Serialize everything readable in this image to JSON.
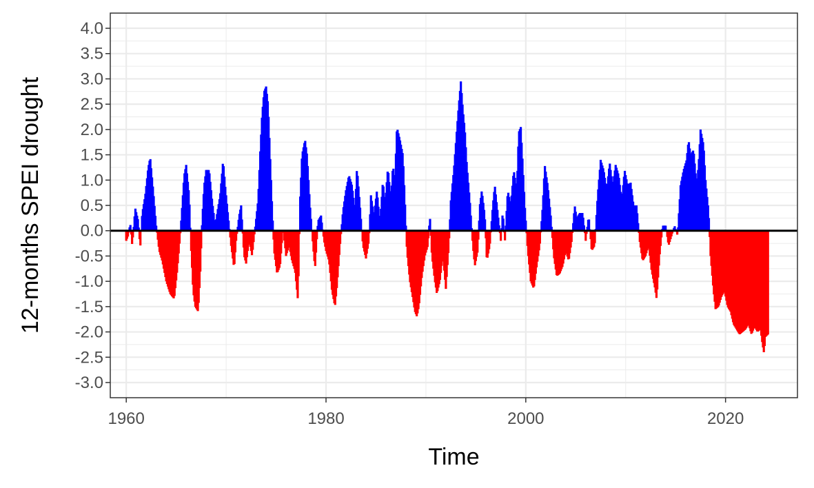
{
  "chart_data": {
    "type": "bar",
    "title": "",
    "xlabel": "Time",
    "ylabel": "12-months SPEI drought",
    "xlim": [
      1958.4,
      2027.2
    ],
    "ylim": [
      -3.3,
      4.3
    ],
    "x_ticks": [
      1960,
      1980,
      2000,
      2020
    ],
    "x_tick_labels": [
      "1960",
      "1980",
      "2000",
      "2020"
    ],
    "y_ticks": [
      -3.0,
      -2.5,
      -2.0,
      -1.5,
      -1.0,
      -0.5,
      0.0,
      0.5,
      1.0,
      1.5,
      2.0,
      2.5,
      3.0,
      3.5,
      4.0
    ],
    "y_tick_labels": [
      "-3.0",
      "-2.5",
      "-2.0",
      "-1.5",
      "-1.0",
      "-0.5",
      "0.0",
      "0.5",
      "1.0",
      "1.5",
      "2.0",
      "2.5",
      "3.0",
      "3.5",
      "4.0"
    ],
    "grid": true,
    "legend": "none",
    "colors": {
      "positive": "#0000ff",
      "negative": "#ff0000",
      "zero_line": "#000000",
      "grid": "#ebebeb",
      "panel_border": "#333333"
    },
    "series_anchors": [
      [
        1960.0,
        -0.2
      ],
      [
        1960.2,
        -0.1
      ],
      [
        1960.4,
        0.15
      ],
      [
        1960.6,
        -0.3
      ],
      [
        1960.9,
        0.45
      ],
      [
        1961.2,
        0.2
      ],
      [
        1961.4,
        -0.35
      ],
      [
        1961.6,
        0.35
      ],
      [
        1961.9,
        0.7
      ],
      [
        1962.2,
        1.25
      ],
      [
        1962.4,
        1.45
      ],
      [
        1962.7,
        0.8
      ],
      [
        1963.0,
        0.1
      ],
      [
        1963.3,
        -0.4
      ],
      [
        1963.6,
        -0.6
      ],
      [
        1964.0,
        -1.0
      ],
      [
        1964.4,
        -1.25
      ],
      [
        1964.8,
        -1.35
      ],
      [
        1965.1,
        -0.8
      ],
      [
        1965.4,
        -0.1
      ],
      [
        1965.6,
        0.5
      ],
      [
        1965.8,
        1.1
      ],
      [
        1966.0,
        1.3
      ],
      [
        1966.3,
        0.7
      ],
      [
        1966.5,
        -0.4
      ],
      [
        1966.7,
        -1.2
      ],
      [
        1966.9,
        -1.5
      ],
      [
        1967.2,
        -1.6
      ],
      [
        1967.4,
        -0.9
      ],
      [
        1967.6,
        0.2
      ],
      [
        1967.8,
        0.9
      ],
      [
        1968.0,
        1.2
      ],
      [
        1968.3,
        1.2
      ],
      [
        1968.6,
        0.6
      ],
      [
        1968.9,
        0.1
      ],
      [
        1969.1,
        0.35
      ],
      [
        1969.4,
        0.7
      ],
      [
        1969.7,
        1.4
      ],
      [
        1969.9,
        0.9
      ],
      [
        1970.2,
        0.3
      ],
      [
        1970.5,
        -0.3
      ],
      [
        1970.8,
        -0.75
      ],
      [
        1971.0,
        -0.2
      ],
      [
        1971.3,
        0.3
      ],
      [
        1971.5,
        0.5
      ],
      [
        1971.8,
        -0.5
      ],
      [
        1972.0,
        -0.65
      ],
      [
        1972.3,
        -0.2
      ],
      [
        1972.6,
        -0.5
      ],
      [
        1972.9,
        0.05
      ],
      [
        1973.2,
        0.6
      ],
      [
        1973.4,
        1.5
      ],
      [
        1973.6,
        2.3
      ],
      [
        1973.8,
        2.75
      ],
      [
        1974.0,
        2.85
      ],
      [
        1974.2,
        2.5
      ],
      [
        1974.4,
        1.5
      ],
      [
        1974.6,
        0.5
      ],
      [
        1974.8,
        -0.4
      ],
      [
        1975.1,
        -0.85
      ],
      [
        1975.4,
        -0.7
      ],
      [
        1975.7,
        0.05
      ],
      [
        1976.0,
        -0.5
      ],
      [
        1976.3,
        -0.3
      ],
      [
        1976.6,
        -0.6
      ],
      [
        1976.9,
        -0.8
      ],
      [
        1977.2,
        -1.4
      ],
      [
        1977.4,
        0.6
      ],
      [
        1977.6,
        1.5
      ],
      [
        1977.9,
        1.8
      ],
      [
        1978.1,
        1.5
      ],
      [
        1978.4,
        0.5
      ],
      [
        1978.7,
        -0.3
      ],
      [
        1978.9,
        -0.75
      ],
      [
        1979.2,
        0.2
      ],
      [
        1979.5,
        0.3
      ],
      [
        1979.8,
        -0.2
      ],
      [
        1980.0,
        -0.4
      ],
      [
        1980.3,
        -0.6
      ],
      [
        1980.6,
        -1.2
      ],
      [
        1980.9,
        -1.5
      ],
      [
        1981.1,
        -1.1
      ],
      [
        1981.4,
        -0.3
      ],
      [
        1981.7,
        0.4
      ],
      [
        1982.0,
        0.8
      ],
      [
        1982.3,
        1.1
      ],
      [
        1982.6,
        0.9
      ],
      [
        1982.9,
        0.4
      ],
      [
        1983.1,
        1.25
      ],
      [
        1983.4,
        0.5
      ],
      [
        1983.7,
        -0.3
      ],
      [
        1984.0,
        -0.55
      ],
      [
        1984.3,
        -0.2
      ],
      [
        1984.5,
        0.7
      ],
      [
        1984.8,
        0.3
      ],
      [
        1985.1,
        0.8
      ],
      [
        1985.4,
        0.15
      ],
      [
        1985.7,
        1.0
      ],
      [
        1985.9,
        0.5
      ],
      [
        1986.2,
        1.25
      ],
      [
        1986.5,
        0.6
      ],
      [
        1986.7,
        1.3
      ],
      [
        1986.9,
        1.0
      ],
      [
        1987.1,
        2.05
      ],
      [
        1987.4,
        1.8
      ],
      [
        1987.7,
        1.5
      ],
      [
        1987.9,
        0.6
      ],
      [
        1988.1,
        -0.4
      ],
      [
        1988.4,
        -1.0
      ],
      [
        1988.7,
        -1.35
      ],
      [
        1988.9,
        -1.6
      ],
      [
        1989.1,
        -1.7
      ],
      [
        1989.3,
        -1.5
      ],
      [
        1989.6,
        -0.9
      ],
      [
        1989.9,
        -0.5
      ],
      [
        1990.2,
        -0.3
      ],
      [
        1990.4,
        0.3
      ],
      [
        1990.6,
        -0.5
      ],
      [
        1990.9,
        -1.0
      ],
      [
        1991.1,
        -1.25
      ],
      [
        1991.4,
        -1.0
      ],
      [
        1991.7,
        -0.5
      ],
      [
        1992.0,
        -1.15
      ],
      [
        1992.3,
        -0.3
      ],
      [
        1992.5,
        0.6
      ],
      [
        1992.8,
        1.2
      ],
      [
        1993.1,
        2.0
      ],
      [
        1993.3,
        2.5
      ],
      [
        1993.5,
        2.95
      ],
      [
        1993.7,
        2.4
      ],
      [
        1993.9,
        2.0
      ],
      [
        1994.1,
        1.3
      ],
      [
        1994.4,
        0.6
      ],
      [
        1994.7,
        -0.3
      ],
      [
        1994.9,
        -0.7
      ],
      [
        1995.2,
        -0.4
      ],
      [
        1995.4,
        0.5
      ],
      [
        1995.6,
        0.8
      ],
      [
        1995.9,
        0.3
      ],
      [
        1996.1,
        -0.6
      ],
      [
        1996.4,
        -0.3
      ],
      [
        1996.7,
        0.5
      ],
      [
        1996.9,
        0.9
      ],
      [
        1997.2,
        0.35
      ],
      [
        1997.5,
        -0.2
      ],
      [
        1997.7,
        0.4
      ],
      [
        1997.9,
        -0.25
      ],
      [
        1998.2,
        0.8
      ],
      [
        1998.5,
        0.5
      ],
      [
        1998.8,
        1.2
      ],
      [
        1999.1,
        0.8
      ],
      [
        1999.3,
        1.95
      ],
      [
        1999.5,
        2.05
      ],
      [
        1999.7,
        1.3
      ],
      [
        1999.9,
        0.5
      ],
      [
        2000.2,
        -0.4
      ],
      [
        2000.5,
        -1.0
      ],
      [
        2000.8,
        -1.15
      ],
      [
        2001.1,
        -0.7
      ],
      [
        2001.4,
        -0.3
      ],
      [
        2001.7,
        0.5
      ],
      [
        2001.9,
        1.3
      ],
      [
        2002.2,
        0.9
      ],
      [
        2002.5,
        0.3
      ],
      [
        2002.8,
        -0.5
      ],
      [
        2003.1,
        -0.9
      ],
      [
        2003.4,
        -0.85
      ],
      [
        2003.7,
        -0.7
      ],
      [
        2004.0,
        -0.4
      ],
      [
        2004.3,
        -0.6
      ],
      [
        2004.6,
        -0.2
      ],
      [
        2004.9,
        0.5
      ],
      [
        2005.1,
        0.25
      ],
      [
        2005.4,
        0.35
      ],
      [
        2005.7,
        0.35
      ],
      [
        2006.0,
        -0.2
      ],
      [
        2006.3,
        0.3
      ],
      [
        2006.6,
        -0.4
      ],
      [
        2006.9,
        -0.3
      ],
      [
        2007.2,
        0.7
      ],
      [
        2007.5,
        1.4
      ],
      [
        2007.8,
        1.2
      ],
      [
        2008.1,
        0.8
      ],
      [
        2008.4,
        1.35
      ],
      [
        2008.7,
        0.9
      ],
      [
        2009.0,
        1.3
      ],
      [
        2009.3,
        1.1
      ],
      [
        2009.6,
        0.6
      ],
      [
        2009.9,
        1.2
      ],
      [
        2010.2,
        0.9
      ],
      [
        2010.5,
        0.95
      ],
      [
        2010.8,
        0.5
      ],
      [
        2011.1,
        0.5
      ],
      [
        2011.4,
        -0.2
      ],
      [
        2011.7,
        -0.6
      ],
      [
        2012.0,
        -0.5
      ],
      [
        2012.3,
        -0.3
      ],
      [
        2012.6,
        -0.8
      ],
      [
        2012.9,
        -1.1
      ],
      [
        2013.1,
        -1.35
      ],
      [
        2013.4,
        -0.5
      ],
      [
        2013.7,
        0.1
      ],
      [
        2014.0,
        0.1
      ],
      [
        2014.3,
        -0.3
      ],
      [
        2014.6,
        -0.1
      ],
      [
        2014.9,
        0.1
      ],
      [
        2015.2,
        -0.1
      ],
      [
        2015.5,
        0.9
      ],
      [
        2015.8,
        1.2
      ],
      [
        2016.1,
        1.4
      ],
      [
        2016.3,
        1.8
      ],
      [
        2016.5,
        1.5
      ],
      [
        2016.8,
        1.6
      ],
      [
        2017.1,
        0.9
      ],
      [
        2017.3,
        1.3
      ],
      [
        2017.5,
        2.0
      ],
      [
        2017.8,
        1.7
      ],
      [
        2018.0,
        1.0
      ],
      [
        2018.3,
        0.4
      ],
      [
        2018.5,
        -0.5
      ],
      [
        2018.8,
        -1.2
      ],
      [
        2019.0,
        -1.55
      ],
      [
        2019.3,
        -1.5
      ],
      [
        2019.6,
        -1.3
      ],
      [
        2019.9,
        -1.2
      ],
      [
        2020.2,
        -1.5
      ],
      [
        2020.5,
        -1.6
      ],
      [
        2020.8,
        -1.85
      ],
      [
        2021.1,
        -1.95
      ],
      [
        2021.4,
        -2.05
      ],
      [
        2021.7,
        -2.0
      ],
      [
        2022.0,
        -1.95
      ],
      [
        2022.3,
        -1.85
      ],
      [
        2022.6,
        -2.05
      ],
      [
        2022.9,
        -1.9
      ],
      [
        2023.2,
        -2.0
      ],
      [
        2023.5,
        -1.95
      ],
      [
        2023.7,
        -2.25
      ],
      [
        2023.85,
        -2.42
      ],
      [
        2024.0,
        -2.1
      ],
      [
        2024.25,
        -2.05
      ]
    ]
  }
}
